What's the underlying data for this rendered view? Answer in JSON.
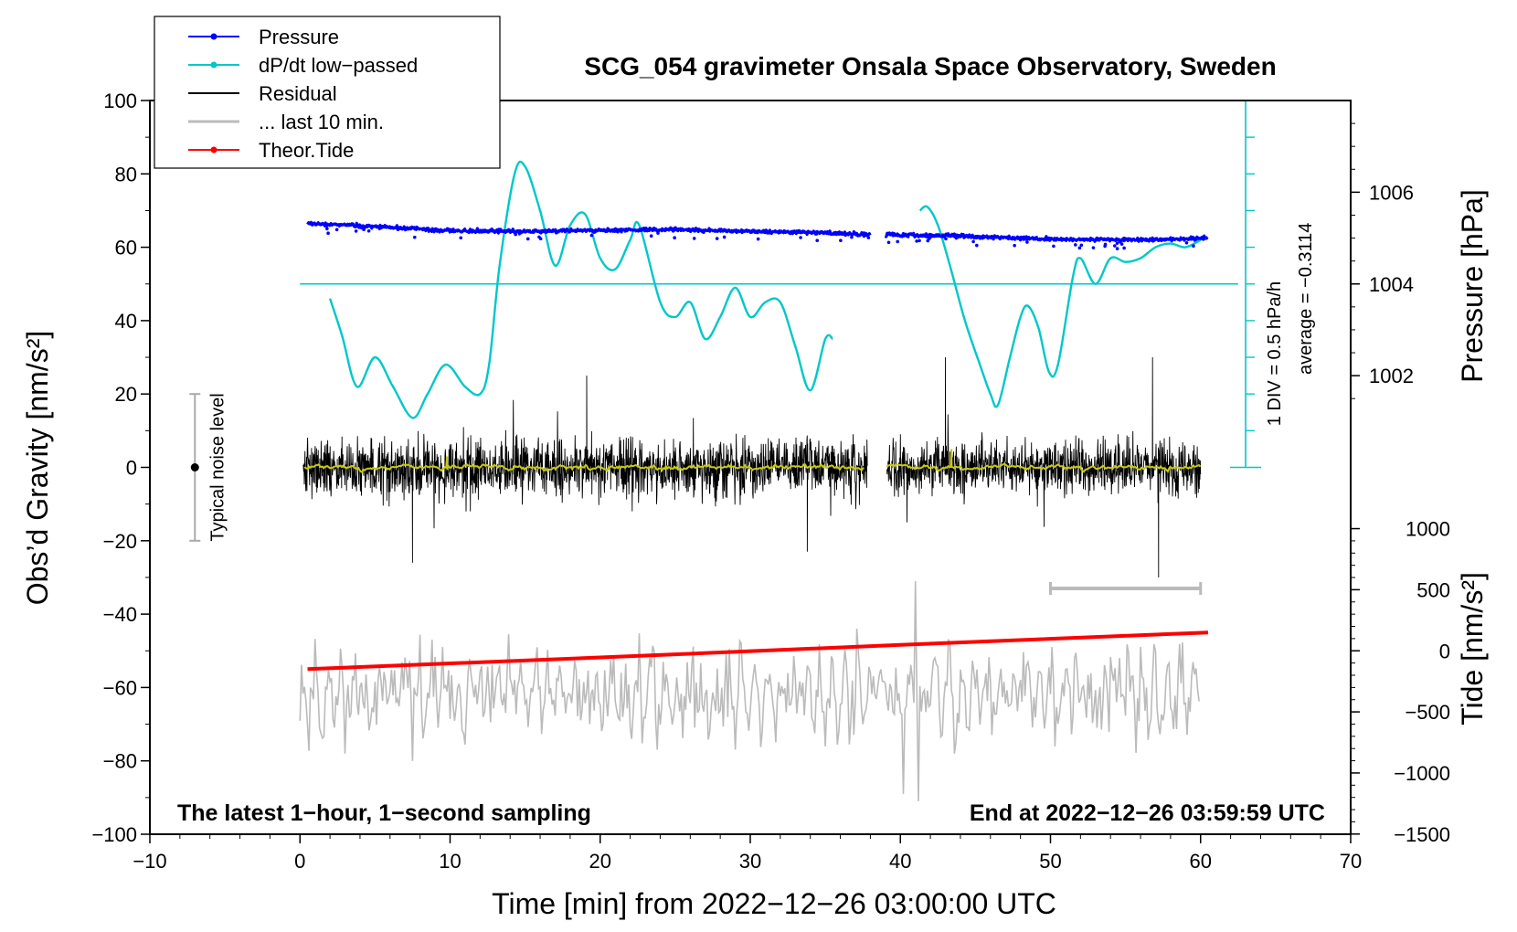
{
  "chart_data": {
    "type": "line",
    "title": "SCG_054 gravimeter Onsala Space Observatory, Sweden",
    "xlabel": "Time [min] from 2022−12−26 03:00:00 UTC",
    "ylabel_left": "Obs’d Gravity [nm/s²]",
    "ylabel_pressure": "Pressure [hPa]",
    "ylabel_tide": "Tide [nm/s²]",
    "xlim": [
      -10,
      70
    ],
    "ylim": [
      -100,
      100
    ],
    "x_ticks": [
      "−10",
      "0",
      "10",
      "20",
      "30",
      "40",
      "50",
      "60",
      "70"
    ],
    "y_ticks": [
      "100",
      "80",
      "60",
      "40",
      "20",
      "0",
      "−20",
      "−40",
      "−60",
      "−80",
      "−100"
    ],
    "pressure_ticks": [
      "1006",
      "1004",
      "1002"
    ],
    "pressure_tick_values": [
      1006,
      1004,
      1002
    ],
    "pressure_map": {
      "value": 1004,
      "gravity": 50,
      "gravity_per_hpa": 12.5
    },
    "tide_ticks": [
      "1000",
      "500",
      "0",
      "−500",
      "−1000",
      "−1500"
    ],
    "tide_tick_values": [
      1000,
      500,
      0,
      -500,
      -1000,
      -1500
    ],
    "tide_map": {
      "value": 0,
      "gravity": -50,
      "gravity_per_unit": 0.0333
    },
    "legend": {
      "position": "top-left",
      "entries": [
        {
          "label": "Pressure",
          "color": "#0000ff",
          "marker": true
        },
        {
          "label": "dP/dt low−passed",
          "color": "#00c8c8",
          "marker": true
        },
        {
          "label": "Residual",
          "color": "#000000",
          "marker": false
        },
        {
          "label": "... last 10 min.",
          "color": "#bbbbbb",
          "marker": false
        },
        {
          "label": "Theor.Tide",
          "color": "#ff0000",
          "marker": true
        }
      ]
    },
    "annotations": {
      "bottom_left": "The latest 1−hour, 1−second sampling",
      "bottom_right": "End at 2022−12−26 03:59:59 UTC",
      "noise": "Typical noise level",
      "div_scale": "1 DIV = 0.5 hPa/h",
      "average": "average = −0.3114"
    },
    "noise_bar": {
      "x": -7,
      "center": 0,
      "half_range": 20
    },
    "last10_bar": {
      "x_start": 50,
      "x_end": 60,
      "y": -33
    },
    "ddt_baseline": {
      "x_start": 0,
      "x_end": 62.5,
      "y": 50
    },
    "ddt_axis": {
      "x": 63,
      "y_bottom": 0,
      "y_top": 100,
      "divisions": 10
    },
    "series": [
      {
        "name": "Pressure",
        "color": "#0000ff",
        "segments": [
          {
            "x": [
              0.5,
              5,
              10,
              15,
              20,
              25,
              30,
              35,
              38
            ],
            "y": [
              66.5,
              65.6,
              64.5,
              64.3,
              64.6,
              64.9,
              64.3,
              63.9,
              63.4
            ]
          },
          {
            "x": [
              39,
              43,
              47,
              50,
              55,
              58,
              60.5
            ],
            "y": [
              63.4,
              63.2,
              62.6,
              62.2,
              62.0,
              62.1,
              62.5
            ]
          }
        ]
      },
      {
        "name": "dP/dt low−passed",
        "color": "#00c8c8",
        "segments": [
          {
            "x": [
              2.0,
              2.8,
              3.8,
              5.0,
              6.2,
              7.5,
              8.5,
              9.7,
              11.0,
              12.0,
              12.6,
              13.3,
              14.3,
              15.0,
              16.0,
              17.0,
              18.0,
              19.0,
              20.0,
              21.0,
              22.0,
              22.6,
              24.0,
              25.0,
              26.0,
              27.0,
              28.0,
              29.0,
              30.0,
              31.0,
              32.0,
              33.0,
              34.0,
              35.0,
              35.5
            ],
            "y": [
              46,
              36,
              22,
              30,
              22,
              13.5,
              20,
              28,
              22,
              20,
              28,
              55,
              80,
              82,
              70,
              55,
              66,
              69,
              57,
              54,
              62,
              66,
              45,
              41,
              45,
              35,
              41,
              49,
              41,
              45,
              45,
              33,
              21,
              35,
              35
            ]
          },
          {
            "x": [
              41.3,
              41.8,
              42.5,
              43.3,
              44.3,
              45.3,
              46.0,
              46.5,
              47.3,
              48.0,
              48.5,
              49.2,
              49.9,
              50.5,
              51.5,
              52.0,
              53.0,
              54.0,
              55.0,
              56.0,
              57.0,
              58.0,
              59.0,
              60.0
            ],
            "y": [
              70,
              71,
              66,
              55,
              40,
              28,
              20,
              17,
              30,
              41,
              44,
              38,
              26,
              28,
              52,
              57,
              50,
              57,
              56,
              57,
              60,
              61,
              60,
              62
            ]
          }
        ]
      },
      {
        "name": "Residual",
        "color": "#000000",
        "segments": [
          {
            "x_start": 0.2,
            "x_end": 37.8,
            "amplitude": 10
          },
          {
            "x_start": 39.1,
            "x_end": 60.0,
            "amplitude": 9
          }
        ],
        "extremes": [
          {
            "x": 7.5,
            "y": -26
          },
          {
            "x": 19.1,
            "y": 25
          },
          {
            "x": 33.8,
            "y": -23
          },
          {
            "x": 43.0,
            "y": 30
          },
          {
            "x": 56.8,
            "y": 30
          },
          {
            "x": 57.2,
            "y": -30
          }
        ]
      },
      {
        "name": "Residual low−passed",
        "color": "#c8c814",
        "segments": [
          {
            "x_start": 0.3,
            "x_end": 37.6,
            "amplitude": 1.2
          },
          {
            "x_start": 39.1,
            "x_end": 60.0,
            "amplitude": 1.2
          }
        ],
        "extremes": [
          {
            "x": 9.8,
            "y": 3
          },
          {
            "x": 43.4,
            "y": 5
          }
        ]
      },
      {
        "name": "... last 10 min.",
        "color": "#bbbbbb",
        "segment": {
          "x_start": 0.0,
          "x_end": 60.0,
          "center": -62,
          "amplitude": 16
        },
        "extremes": [
          {
            "x": 41.0,
            "y": -31
          },
          {
            "x": 41.2,
            "y": -91
          },
          {
            "x": 40.2,
            "y": -89
          },
          {
            "x": 7.5,
            "y": -80
          }
        ]
      },
      {
        "name": "Theor.Tide",
        "color": "#ff0000",
        "x": [
          0.5,
          20,
          40,
          60.5
        ],
        "y": [
          -55,
          -51.8,
          -48.4,
          -45.0
        ]
      }
    ]
  }
}
